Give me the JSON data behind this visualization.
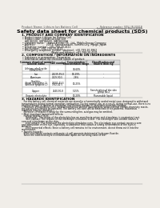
{
  "bg_color": "#f0ede8",
  "header_left": "Product Name: Lithium Ion Battery Cell",
  "header_right_l1": "Reference number: SDS-LIB-0001B",
  "header_right_l2": "Establishment / Revision: Dec.1 2019",
  "title": "Safety data sheet for chemical products (SDS)",
  "s1_heading": "1. PRODUCT AND COMPANY IDENTIFICATION",
  "s1_lines": [
    "• Product name: Lithium Ion Battery Cell",
    "• Product code: Cylindrical-type cell",
    "   IHR 86500, IHR 86500, IHR 86500A",
    "• Company name:    Sanyo Electric Co., Ltd., Mobile Energy Company",
    "• Address:              200-1  Kannakamachi, Sumoto-City, Hyogo, Japan",
    "• Telephone number:  +81-799-20-4111",
    "• Fax number:  +81-799-20-4122",
    "• Emergency telephone number (daytime): +81-799-20-3862",
    "                                    (Night and holiday): +81-799-20-4131"
  ],
  "s2_heading": "2. COMPOSITION / INFORMATION ON INGREDIENTS",
  "s2_intro": [
    "• Substance or preparation: Preparation",
    "• Information about the chemical nature of product:"
  ],
  "table_headers": [
    "Common chemical name /\nGeneral name",
    "CAS number",
    "Concentration /\nConcentration range",
    "Classification and\nhazard labeling"
  ],
  "table_rows": [
    [
      "Lithium cobalt oxide\n(LiMnCo¹/O₂)",
      "-",
      "30-60%",
      ""
    ],
    [
      "Iron",
      "26239-59-0",
      "18-29%",
      "-"
    ],
    [
      "Aluminum",
      "7429-90-5",
      "2-8%",
      "-"
    ],
    [
      "Graphite\n(Hotal in graphite-1)\n(Artificial graphite-1)",
      "77002-43-5\n7782-42-5",
      "10-25%",
      ""
    ],
    [
      "Copper",
      "7440-50-8",
      "5-15%",
      "Sensitization of the skin\ngroup No.2"
    ],
    [
      "Organic electrolyte",
      "-",
      "10-20%",
      "Flammable liquid"
    ]
  ],
  "s3_heading": "3. HAZARDS IDENTIFICATION",
  "s3_body": [
    "   For this battery cell, chemical materials are stored in a hermetically sealed metal case, designed to withstand",
    "temperatures during normal operation-combustion. During normal use, as a result, during normal-use, there is no",
    "physical danger of ignition or expiration and thermal-danger of hazardous materials leakage.",
    "   However, if exposed to a fire, added mechanical shocks, decomposed, when internal electro-chemistry reacts,",
    "the gas insides cannot be operated. The battery cell case will be breached of fire-patterns. Hazardous",
    "materials may be released.",
    "   Moreover, if heated strongly by the surrounding fire, acid gas may be emitted.",
    "",
    "• Most important hazard and effects:",
    "   Human health effects:",
    "      Inhalation: The steam of the electrolyte has an anesthesia action and stimulates in respiratory tract.",
    "      Skin contact: The release of the electrolyte stimulates a skin. The electrolyte skin contact causes a",
    "sore and stimulation on the skin.",
    "      Eye contact: The release of the electrolyte stimulates eyes. The electrolyte eye contact causes a sore",
    "and stimulation on the eye. Especially, a substance that causes a strong inflammation of the eyes is",
    "corrosive.",
    "      Environmental effects: Since a battery cell remains in the environment, do not throw out it into the",
    "environment.",
    "",
    "• Specific hazards:",
    "   If the electrolyte contacts with water, it will generate detrimental hydrogen fluoride.",
    "   Since the said electrolyte is inflammable liquid, do not bring close to fire."
  ]
}
